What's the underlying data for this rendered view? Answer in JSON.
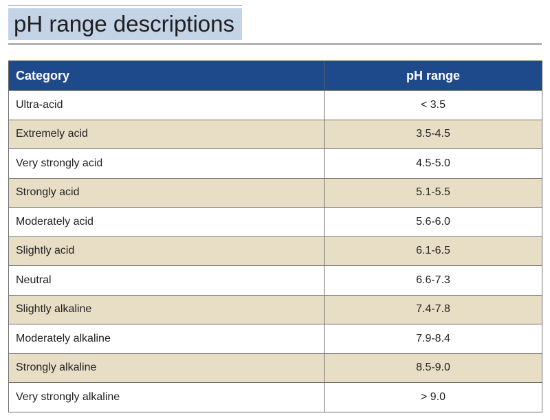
{
  "title": "pH range descriptions",
  "colors": {
    "title_bg": "#c5d3e6",
    "header_bg": "#1e4a8c",
    "header_text": "#ffffff",
    "stripe_bg": "#e8dec6"
  },
  "table": {
    "headers": {
      "category": "Category",
      "range": "pH range"
    },
    "rows": [
      {
        "category": "Ultra-acid",
        "range": "< 3.5"
      },
      {
        "category": "Extremely acid",
        "range": "3.5-4.5"
      },
      {
        "category": "Very strongly acid",
        "range": "4.5-5.0"
      },
      {
        "category": "Strongly acid",
        "range": "5.1-5.5"
      },
      {
        "category": "Moderately acid",
        "range": "5.6-6.0"
      },
      {
        "category": "Slightly acid",
        "range": "6.1-6.5"
      },
      {
        "category": "Neutral",
        "range": "6.6-7.3"
      },
      {
        "category": "Slightly alkaline",
        "range": "7.4-7.8"
      },
      {
        "category": "Moderately alkaline",
        "range": "7.9-8.4"
      },
      {
        "category": "Strongly alkaline",
        "range": "8.5-9.0"
      },
      {
        "category": "Very strongly alkaline",
        "range": "> 9.0"
      }
    ]
  }
}
